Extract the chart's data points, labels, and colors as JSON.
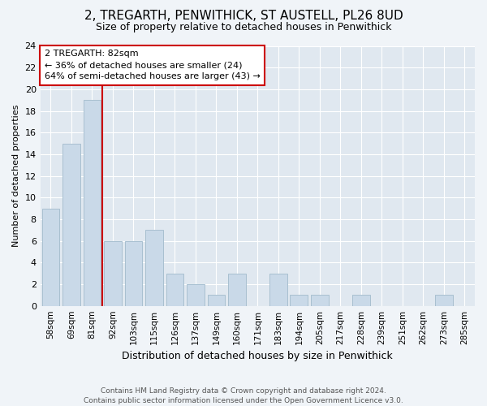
{
  "title1": "2, TREGARTH, PENWITHICK, ST AUSTELL, PL26 8UD",
  "title2": "Size of property relative to detached houses in Penwithick",
  "xlabel": "Distribution of detached houses by size in Penwithick",
  "ylabel": "Number of detached properties",
  "categories": [
    "58sqm",
    "69sqm",
    "81sqm",
    "92sqm",
    "103sqm",
    "115sqm",
    "126sqm",
    "137sqm",
    "149sqm",
    "160sqm",
    "171sqm",
    "183sqm",
    "194sqm",
    "205sqm",
    "217sqm",
    "228sqm",
    "239sqm",
    "251sqm",
    "262sqm",
    "273sqm",
    "285sqm"
  ],
  "values": [
    9,
    15,
    19,
    6,
    6,
    7,
    3,
    2,
    1,
    3,
    0,
    3,
    1,
    1,
    0,
    1,
    0,
    0,
    0,
    1,
    0
  ],
  "bar_color": "#c9d9e8",
  "bar_edgecolor": "#a8c0d0",
  "vline_color": "#cc0000",
  "annotation_text": "2 TREGARTH: 82sqm\n← 36% of detached houses are smaller (24)\n64% of semi-detached houses are larger (43) →",
  "annotation_box_facecolor": "#ffffff",
  "annotation_box_edgecolor": "#cc0000",
  "ylim": [
    0,
    24
  ],
  "yticks": [
    0,
    2,
    4,
    6,
    8,
    10,
    12,
    14,
    16,
    18,
    20,
    22,
    24
  ],
  "footer": "Contains HM Land Registry data © Crown copyright and database right 2024.\nContains public sector information licensed under the Open Government Licence v3.0.",
  "bg_color": "#f0f4f8",
  "plot_bg_color": "#e0e8f0",
  "grid_color": "#ffffff",
  "title1_fontsize": 11,
  "title2_fontsize": 9,
  "xlabel_fontsize": 9,
  "ylabel_fontsize": 8,
  "tick_fontsize": 8,
  "xtick_fontsize": 7.5,
  "annotation_fontsize": 8
}
